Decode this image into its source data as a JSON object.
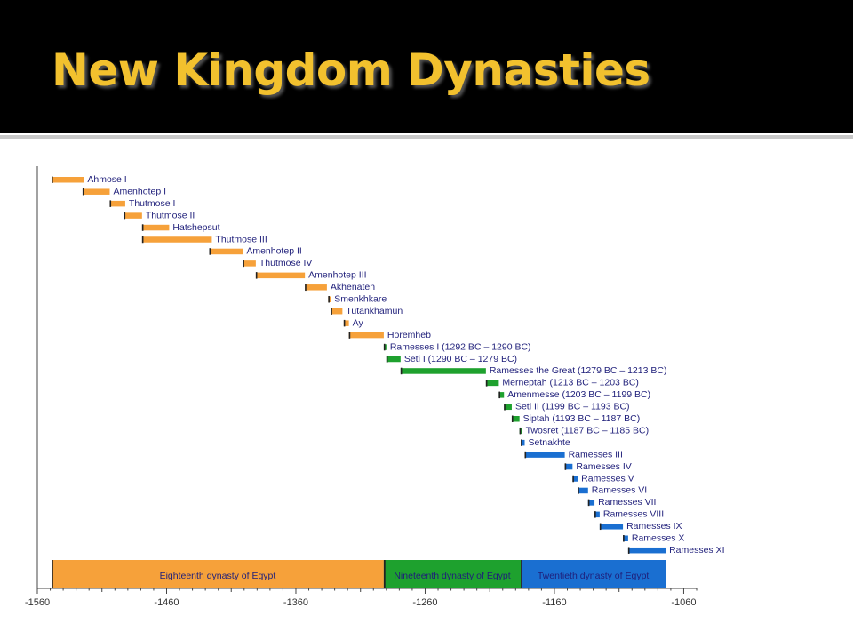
{
  "slide": {
    "title": "New Kingdom Dynasties"
  },
  "chart_data": {
    "type": "bar",
    "xlim": [
      -1560,
      -1050
    ],
    "x_ticks": [
      -1560,
      -1460,
      -1360,
      -1260,
      -1160,
      -1060
    ],
    "x_tick_labels": [
      "-1560",
      "-1460",
      "-1360",
      "-1260",
      "-1160",
      "-1060"
    ],
    "colors": {
      "eighteenth": "#f6a13a",
      "nineteenth": "#1ea12e",
      "twentieth": "#1a6fd1"
    },
    "reigns": [
      {
        "label": "Ahmose I",
        "start": -1549,
        "end": -1524,
        "dynasty": "eighteenth"
      },
      {
        "label": "Amenhotep I",
        "start": -1525,
        "end": -1504,
        "dynasty": "eighteenth"
      },
      {
        "label": "Thutmose I",
        "start": -1504,
        "end": -1492,
        "dynasty": "eighteenth"
      },
      {
        "label": "Thutmose II",
        "start": -1493,
        "end": -1479,
        "dynasty": "eighteenth"
      },
      {
        "label": "Hatshepsut",
        "start": -1479,
        "end": -1458,
        "dynasty": "eighteenth"
      },
      {
        "label": "Thutmose III",
        "start": -1479,
        "end": -1425,
        "dynasty": "eighteenth"
      },
      {
        "label": "Amenhotep II",
        "start": -1427,
        "end": -1401,
        "dynasty": "eighteenth"
      },
      {
        "label": "Thutmose IV",
        "start": -1401,
        "end": -1391,
        "dynasty": "eighteenth"
      },
      {
        "label": "Amenhotep III",
        "start": -1391,
        "end": -1353,
        "dynasty": "eighteenth"
      },
      {
        "label": "Akhenaten",
        "start": -1353,
        "end": -1336,
        "dynasty": "eighteenth"
      },
      {
        "label": "Smenkhkare",
        "start": -1335,
        "end": -1333,
        "dynasty": "eighteenth"
      },
      {
        "label": "Tutankhamun",
        "start": -1333,
        "end": -1324,
        "dynasty": "eighteenth"
      },
      {
        "label": "Ay",
        "start": -1323,
        "end": -1319,
        "dynasty": "eighteenth"
      },
      {
        "label": "Horemheb",
        "start": -1319,
        "end": -1292,
        "dynasty": "eighteenth"
      },
      {
        "label": "Ramesses I (1292 BC – 1290 BC)",
        "start": -1292,
        "end": -1290,
        "dynasty": "nineteenth"
      },
      {
        "label": "Seti I (1290 BC – 1279 BC)",
        "start": -1290,
        "end": -1279,
        "dynasty": "nineteenth"
      },
      {
        "label": "Ramesses the Great (1279 BC – 1213 BC)",
        "start": -1279,
        "end": -1213,
        "dynasty": "nineteenth"
      },
      {
        "label": "Merneptah (1213 BC – 1203 BC)",
        "start": -1213,
        "end": -1203,
        "dynasty": "nineteenth"
      },
      {
        "label": "Amenmesse (1203 BC – 1199 BC)",
        "start": -1203,
        "end": -1199,
        "dynasty": "nineteenth"
      },
      {
        "label": "Seti II (1199 BC – 1193 BC)",
        "start": -1199,
        "end": -1193,
        "dynasty": "nineteenth"
      },
      {
        "label": "Siptah (1193 BC – 1187 BC)",
        "start": -1193,
        "end": -1187,
        "dynasty": "nineteenth"
      },
      {
        "label": "Twosret (1187 BC – 1185 BC)",
        "start": -1187,
        "end": -1185,
        "dynasty": "nineteenth"
      },
      {
        "label": "Setnakhte",
        "start": -1186,
        "end": -1183,
        "dynasty": "twentieth"
      },
      {
        "label": "Ramesses III",
        "start": -1183,
        "end": -1152,
        "dynasty": "twentieth"
      },
      {
        "label": "Ramesses IV",
        "start": -1152,
        "end": -1146,
        "dynasty": "twentieth"
      },
      {
        "label": "Ramesses V",
        "start": -1146,
        "end": -1142,
        "dynasty": "twentieth"
      },
      {
        "label": "Ramesses VI",
        "start": -1142,
        "end": -1134,
        "dynasty": "twentieth"
      },
      {
        "label": "Ramesses VII",
        "start": -1134,
        "end": -1129,
        "dynasty": "twentieth"
      },
      {
        "label": "Ramesses VIII",
        "start": -1129,
        "end": -1125,
        "dynasty": "twentieth"
      },
      {
        "label": "Ramesses IX",
        "start": -1125,
        "end": -1107,
        "dynasty": "twentieth"
      },
      {
        "label": "Ramesses X",
        "start": -1107,
        "end": -1103,
        "dynasty": "twentieth"
      },
      {
        "label": "Ramesses XI",
        "start": -1103,
        "end": -1074,
        "dynasty": "twentieth"
      }
    ],
    "dynasty_bands": [
      {
        "label": "Eighteenth dynasty of Egypt",
        "start": -1549,
        "end": -1292,
        "dynasty": "eighteenth"
      },
      {
        "label": "Nineteenth dynasty of Egypt",
        "start": -1292,
        "end": -1186,
        "dynasty": "nineteenth"
      },
      {
        "label": "Twentieth dynasty of Egypt",
        "start": -1186,
        "end": -1074,
        "dynasty": "twentieth"
      }
    ]
  }
}
